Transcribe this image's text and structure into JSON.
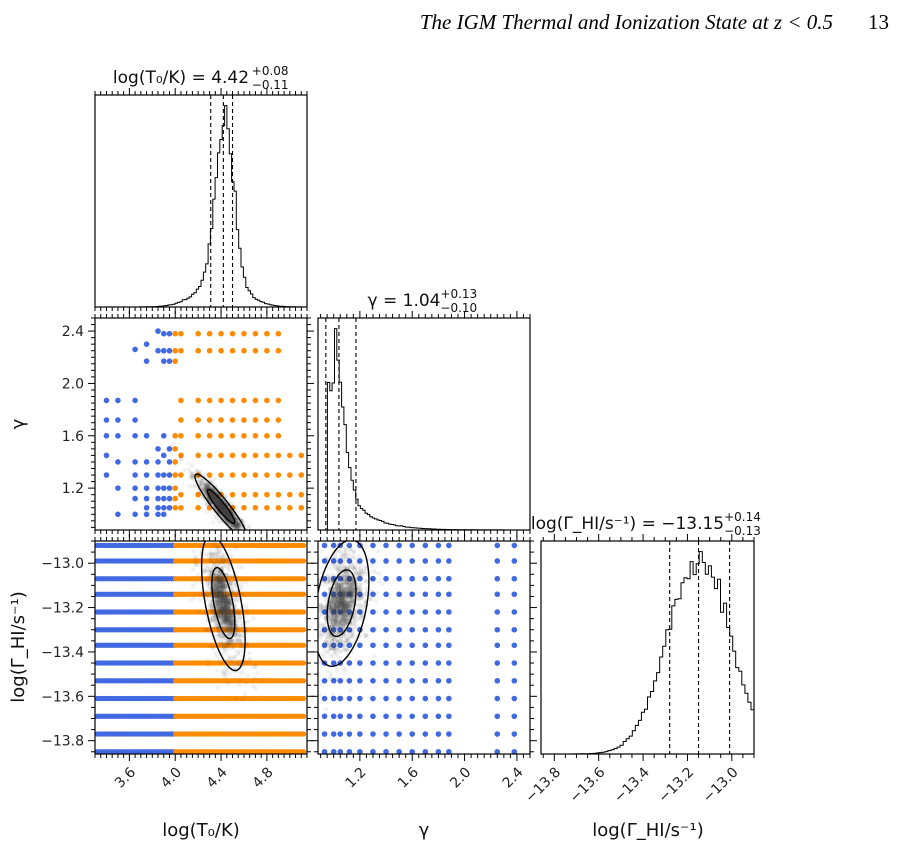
{
  "page_header": {
    "running_title": "The IGM Thermal and Ionization State at z < 0.5",
    "page_number": "13"
  },
  "colors": {
    "grid_low": "#4169e1",
    "grid_high": "#ff8c00",
    "posterior": "#000000"
  },
  "chart_data": {
    "type": "corner",
    "parameters": [
      {
        "key": "logT0",
        "axis_label": "log(T₀/K)",
        "title": "log(T₀/K) = 4.42",
        "median": 4.42,
        "err_plus": 0.08,
        "err_minus": 0.11,
        "err_plus_label": "+0.08",
        "err_minus_label": "−0.11",
        "range": [
          3.3,
          5.15
        ],
        "ticks": [
          3.6,
          4.0,
          4.4,
          4.8
        ],
        "tick_labels": [
          "3.6",
          "4.0",
          "4.4",
          "4.8"
        ]
      },
      {
        "key": "gamma",
        "axis_label": "γ",
        "title": "γ = 1.04",
        "median": 1.04,
        "err_plus": 0.13,
        "err_minus": 0.1,
        "err_plus_label": "+0.13",
        "err_minus_label": "−0.10",
        "range": [
          0.88,
          2.5
        ],
        "ticks": [
          1.2,
          1.6,
          2.0,
          2.4
        ],
        "tick_labels": [
          "1.2",
          "1.6",
          "2.0",
          "2.4"
        ]
      },
      {
        "key": "logGamma",
        "axis_label": "log(Γ_HI/s⁻¹)",
        "title": "log(Γ_HI/s⁻¹) = −13.15",
        "median": -13.15,
        "err_plus": 0.14,
        "err_minus": 0.13,
        "err_plus_label": "+0.14",
        "err_minus_label": "−0.13",
        "range": [
          -13.86,
          -12.9
        ],
        "ticks": [
          -13.8,
          -13.6,
          -13.4,
          -13.2,
          -13.0
        ],
        "tick_labels": [
          "−13.8",
          "−13.6",
          "−13.4",
          "−13.2",
          "−13.0"
        ]
      }
    ],
    "grid_points": {
      "logT0": [
        3.4,
        3.5,
        3.65,
        3.8,
        3.9,
        4.0,
        4.1,
        4.2,
        4.3,
        4.4,
        4.5,
        4.6,
        4.7,
        4.8,
        4.9,
        5.0,
        5.1
      ],
      "gamma": [
        1.0,
        1.05,
        1.12,
        1.2,
        1.3,
        1.4,
        1.5,
        1.6,
        1.7,
        1.8,
        1.88,
        2.25,
        2.38,
        2.42
      ],
      "logGamma": [
        -13.85,
        -13.77,
        -13.69,
        -13.61,
        -13.53,
        -13.45,
        -13.37,
        -13.3,
        -13.22,
        -13.14,
        -13.07,
        -12.99,
        -12.92
      ],
      "color_split_logT0": 4.0
    },
    "panels_2d": [
      {
        "x": "logT0",
        "y": "gamma"
      },
      {
        "x": "logT0",
        "y": "logGamma"
      },
      {
        "x": "gamma",
        "y": "logGamma"
      }
    ]
  }
}
